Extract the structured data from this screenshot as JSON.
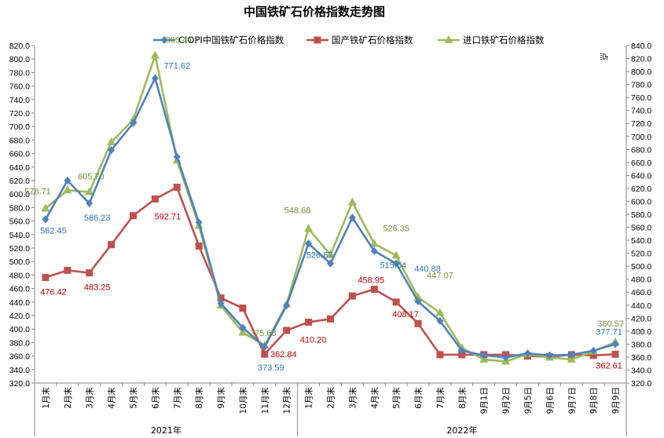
{
  "chart_data": {
    "type": "line",
    "title": "中国铁矿石价格指数走势图",
    "y2_label": "点",
    "ylim": [
      320,
      820
    ],
    "ytick_step": 20,
    "y2lim": [
      320,
      840
    ],
    "grid": false,
    "legend_position": "top",
    "categories": [
      "1月末",
      "2月末",
      "3月末",
      "4月末",
      "5月末",
      "6月末",
      "7月末",
      "8月末",
      "9月末",
      "10月末",
      "11月末",
      "12月末",
      "1月末",
      "2月末",
      "3月末",
      "4月末",
      "5月末",
      "6月末",
      "7月末",
      "8月末",
      "9月1日",
      "9月2日",
      "9月5日",
      "9月6日",
      "9月7日",
      "9月8日",
      "9月9日"
    ],
    "groups": [
      {
        "label": "2021年",
        "start": 0,
        "end": 11
      },
      {
        "label": "2022年",
        "start": 12,
        "end": 26
      }
    ],
    "series": [
      {
        "name": "CIOPI中国铁矿石价格指数",
        "color": "#4F81BD",
        "marker": "diamond",
        "label_color": "#2E75B6",
        "values": [
          562.45,
          620,
          586.23,
          665,
          705,
          771.62,
          655,
          558,
          438,
          402,
          373.59,
          435,
          526.67,
          497,
          565,
          515.64,
          497,
          440.88,
          412,
          368,
          361,
          358,
          364,
          361,
          362,
          368,
          377.71
        ]
      },
      {
        "name": "国产铁矿石价格指数",
        "color": "#C0504D",
        "marker": "square",
        "label_color": "#C00000",
        "values": [
          476.42,
          487,
          483.25,
          525,
          568,
          592.71,
          610,
          523,
          446,
          431,
          362.84,
          398,
          410.2,
          415,
          449,
          458.95,
          440,
          408.17,
          362,
          362,
          362,
          362,
          360,
          359,
          362,
          361,
          362.61
        ]
      },
      {
        "name": "进口铁矿石价格指数",
        "color": "#9BBB59",
        "marker": "triangle",
        "label_color": "#76923C",
        "values": [
          578.71,
          605.7,
          603,
          677,
          710,
          805.44,
          650,
          553,
          435,
          395,
          375.63,
          437,
          548.68,
          510,
          588,
          526.35,
          509,
          447.07,
          424,
          372,
          355,
          352,
          363,
          358,
          355,
          367,
          380.57
        ]
      }
    ],
    "data_labels": [
      {
        "series": 0,
        "index": 0,
        "text": "562.45"
      },
      {
        "series": 0,
        "index": 2,
        "text": "586.23"
      },
      {
        "series": 0,
        "index": 5,
        "text": "771.62"
      },
      {
        "series": 0,
        "index": 10,
        "text": "373.59"
      },
      {
        "series": 0,
        "index": 12,
        "text": "526.67"
      },
      {
        "series": 0,
        "index": 15,
        "text": "515.64"
      },
      {
        "series": 0,
        "index": 17,
        "text": "440.88"
      },
      {
        "series": 0,
        "index": 26,
        "text": "377.71"
      },
      {
        "series": 1,
        "index": 0,
        "text": "476.42"
      },
      {
        "series": 1,
        "index": 2,
        "text": "483.25"
      },
      {
        "series": 1,
        "index": 5,
        "text": "592.71"
      },
      {
        "series": 1,
        "index": 10,
        "text": "362.84"
      },
      {
        "series": 1,
        "index": 12,
        "text": "410.20"
      },
      {
        "series": 1,
        "index": 15,
        "text": "458.95"
      },
      {
        "series": 1,
        "index": 17,
        "text": "408.17"
      },
      {
        "series": 1,
        "index": 26,
        "text": "362.61"
      },
      {
        "series": 2,
        "index": 0,
        "text": "578.71"
      },
      {
        "series": 2,
        "index": 1,
        "text": "605.70"
      },
      {
        "series": 2,
        "index": 5,
        "text": "805.44"
      },
      {
        "series": 2,
        "index": 10,
        "text": "375.63"
      },
      {
        "series": 2,
        "index": 12,
        "text": "548.68"
      },
      {
        "series": 2,
        "index": 15,
        "text": "526.35"
      },
      {
        "series": 2,
        "index": 17,
        "text": "447.07"
      },
      {
        "series": 2,
        "index": 26,
        "text": "380.57"
      }
    ]
  }
}
